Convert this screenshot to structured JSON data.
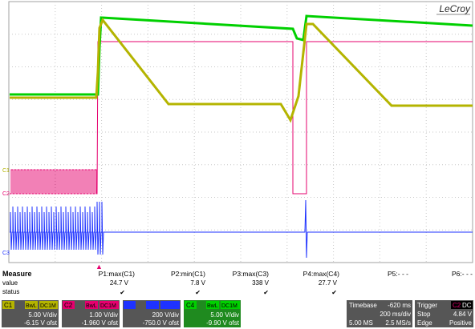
{
  "brand": "LeCroy",
  "trigger_marker": "▲",
  "channel_markers": {
    "c1": "C1",
    "c2": "C2",
    "c3": "C3"
  },
  "measure": {
    "title": "Measure",
    "row_value_label": "value",
    "row_status_label": "status",
    "params": [
      {
        "label": "P1:max(C1)",
        "value": "24.7 V",
        "status": "✔"
      },
      {
        "label": "P2:min(C1)",
        "value": "7.8 V",
        "status": "✔"
      },
      {
        "label": "P3:max(C3)",
        "value": "338 V",
        "status": "✔"
      },
      {
        "label": "P4:max(C4)",
        "value": "27.7 V",
        "status": "✔"
      },
      {
        "label": "P5:- - -",
        "value": "",
        "status": ""
      },
      {
        "label": "P6:- - -",
        "value": "",
        "status": ""
      }
    ]
  },
  "channels": [
    {
      "id": "C1",
      "badge_bw": "BwL",
      "badge_cp": "DC1M",
      "vdiv": "5.00 V/div",
      "ofst": "-6.15 V ofst",
      "color": "#b4b400"
    },
    {
      "id": "C2",
      "badge_bw": "BwL",
      "badge_cp": "DC1M",
      "vdiv": "1.00 V/div",
      "ofst": "-1.960 V ofst",
      "color": "#e6006e"
    },
    {
      "id": "C3",
      "badge_bw": "BwL",
      "badge_cp": "DC1M",
      "vdiv": "200 V/div",
      "ofst": "-750.0 V ofst",
      "color": "#1e32ff"
    },
    {
      "id": "C4",
      "badge_bw": "BwL",
      "badge_cp": "DC1M",
      "vdiv": "5.00 V/div",
      "ofst": "-9.90 V ofst",
      "color": "#00d000"
    }
  ],
  "timebase": {
    "label": "Timebase",
    "delay": "-620 ms",
    "tdiv": "200 ms/div",
    "samples": "5.00 MS",
    "rate": "2.5 MS/s"
  },
  "trigger": {
    "label": "Trigger",
    "source": "C2",
    "coupling": "DC",
    "mode": "Stop",
    "level": "4.84 V",
    "type": "Edge",
    "slope": "Positive"
  },
  "colors": {
    "c1": "#b4b400",
    "c2": "#e6006e",
    "c3": "#1e32ff",
    "c4": "#00d000",
    "panel": "#565656",
    "grid": "#c8c8c8"
  }
}
